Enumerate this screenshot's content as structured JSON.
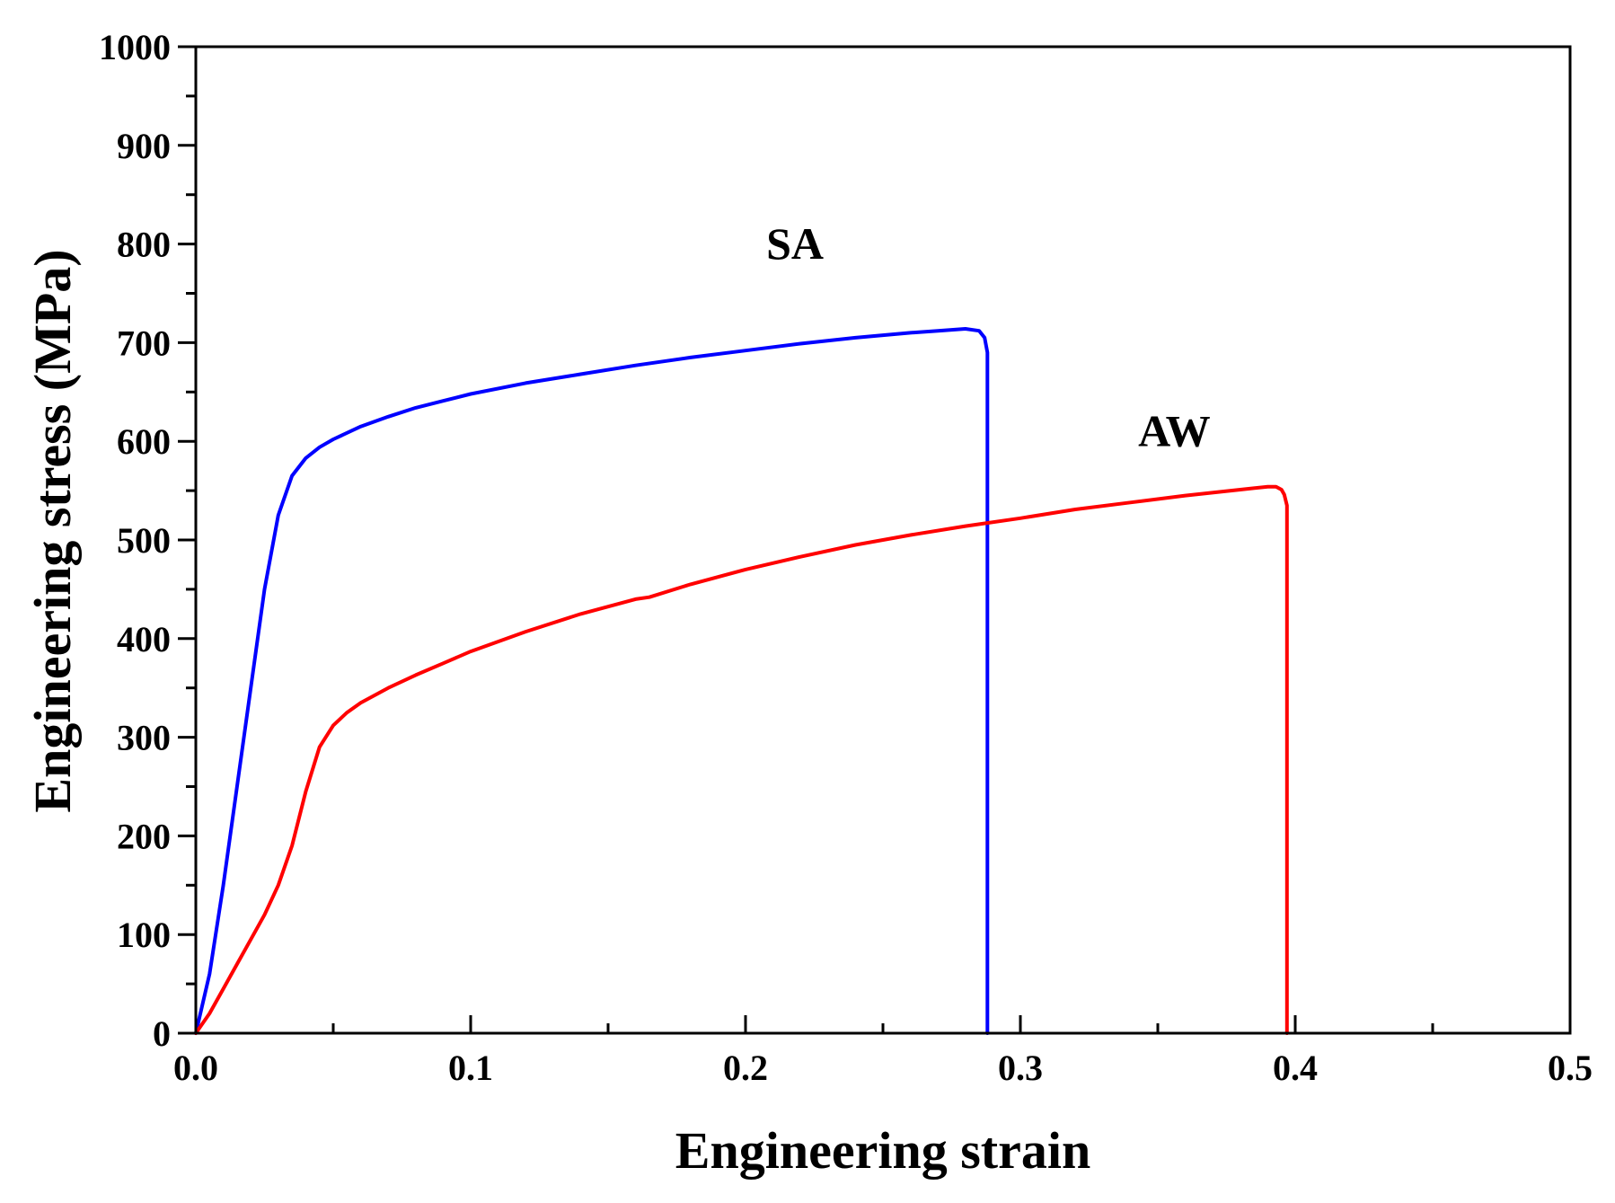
{
  "chart_data": {
    "type": "line",
    "title": "",
    "xlabel": "Engineering strain",
    "ylabel": "Engineering stress (MPa)",
    "xlim": [
      0.0,
      0.5
    ],
    "ylim": [
      0,
      1000
    ],
    "x_ticks": [
      0.0,
      0.1,
      0.2,
      0.3,
      0.4,
      0.5
    ],
    "x_tick_labels": [
      "0.0",
      "0.1",
      "0.2",
      "0.3",
      "0.4",
      "0.5"
    ],
    "y_ticks": [
      0,
      100,
      200,
      300,
      400,
      500,
      600,
      700,
      800,
      900,
      1000
    ],
    "y_tick_labels": [
      "0",
      "100",
      "200",
      "300",
      "400",
      "500",
      "600",
      "700",
      "800",
      "900",
      "1000"
    ],
    "grid": false,
    "series": [
      {
        "name": "SA",
        "color": "#0000ff",
        "label": "SA",
        "label_at": [
          0.218,
          785
        ],
        "x": [
          0,
          0.005,
          0.01,
          0.015,
          0.02,
          0.025,
          0.03,
          0.035,
          0.04,
          0.045,
          0.05,
          0.06,
          0.07,
          0.08,
          0.09,
          0.1,
          0.12,
          0.14,
          0.16,
          0.18,
          0.2,
          0.22,
          0.24,
          0.26,
          0.27,
          0.28,
          0.285,
          0.287,
          0.288,
          0.288
        ],
        "y": [
          0,
          60,
          150,
          250,
          350,
          450,
          525,
          565,
          583,
          594,
          602,
          615,
          625,
          634,
          641,
          648,
          659,
          668,
          677,
          685,
          692,
          699,
          705,
          710,
          712,
          714,
          712,
          705,
          690,
          0
        ]
      },
      {
        "name": "AW",
        "color": "#ff0000",
        "label": "AW",
        "label_at": [
          0.356,
          595
        ],
        "x": [
          0,
          0.005,
          0.01,
          0.015,
          0.02,
          0.025,
          0.03,
          0.035,
          0.04,
          0.045,
          0.05,
          0.055,
          0.06,
          0.07,
          0.08,
          0.09,
          0.1,
          0.12,
          0.14,
          0.16,
          0.165,
          0.18,
          0.2,
          0.22,
          0.24,
          0.26,
          0.28,
          0.3,
          0.32,
          0.34,
          0.36,
          0.38,
          0.39,
          0.393,
          0.395,
          0.396,
          0.397,
          0.397
        ],
        "y": [
          0,
          20,
          45,
          70,
          95,
          120,
          150,
          190,
          245,
          290,
          312,
          325,
          335,
          350,
          363,
          375,
          387,
          407,
          425,
          440,
          442,
          455,
          470,
          483,
          495,
          505,
          514,
          522,
          531,
          538,
          545,
          551,
          554,
          554,
          551,
          546,
          535,
          0
        ]
      }
    ]
  }
}
